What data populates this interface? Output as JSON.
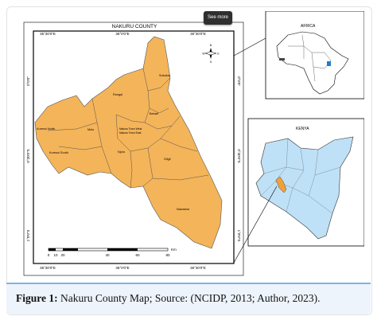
{
  "main_map": {
    "title": "NAKURU COUNTY",
    "top_ticks": [
      "35°30'0\"E",
      "36°0'0\"E",
      "36°30'0\"E"
    ],
    "bottom_ticks": [
      "35°30'0\"E",
      "36°0'0\"E",
      "36°30'0\"E"
    ],
    "left_ticks": [
      "0°0'0\"",
      "0°30'0\"S",
      "1°0'0\"S"
    ],
    "right_ticks": [
      "0°0'0\"",
      "0°30'0\"S",
      "1°0'0\"S"
    ],
    "compass": {
      "n": "N",
      "s": "S",
      "e": "E",
      "w": "W"
    },
    "scale_labels": [
      "0",
      "10",
      "20",
      "40",
      "60",
      "80"
    ],
    "scale_unit": "Km",
    "regions": [
      "Subukia",
      "Rongai",
      "Bahati",
      "Molo",
      "Nakuru Town West",
      "Nakuru Town East",
      "Kuresoi North",
      "Njoro",
      "Kuresoi South",
      "Gilgil",
      "Naivasha"
    ],
    "fill_color": "#f4b459"
  },
  "inset_africa": {
    "title": "AFRICA"
  },
  "inset_kenya": {
    "title": "KENYA",
    "fill_color": "#bfe1f7",
    "highlight_color": "#f0a13a"
  },
  "tooltip": {
    "label": "See more"
  },
  "caption": {
    "label": "Figure 1:",
    "text": "Nakuru County Map; Source: (NCIDP, 2013; Author, 2023)."
  }
}
